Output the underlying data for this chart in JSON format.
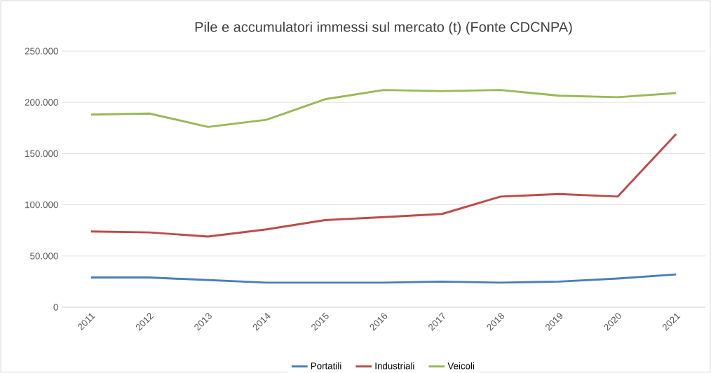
{
  "chart_data": {
    "type": "line",
    "title": "Pile e accumulatori immessi sul mercato (t) (Fonte CDCNPA)",
    "categories": [
      "2011",
      "2012",
      "2013",
      "2014",
      "2015",
      "2016",
      "2017",
      "2018",
      "2019",
      "2020",
      "2021"
    ],
    "series": [
      {
        "name": "Portatili",
        "color": "#4a7ebb",
        "values": [
          29000,
          29000,
          26500,
          24000,
          24000,
          24000,
          25000,
          24000,
          25000,
          28000,
          32000
        ]
      },
      {
        "name": "Industriali",
        "color": "#be4b48",
        "values": [
          74000,
          73000,
          69000,
          76000,
          85000,
          88000,
          91000,
          108000,
          110500,
          108000,
          169000
        ]
      },
      {
        "name": "Veicoli",
        "color": "#98b954",
        "values": [
          188000,
          189000,
          176000,
          183000,
          203000,
          212000,
          211000,
          212000,
          206500,
          205000,
          209000
        ]
      }
    ],
    "ylim": [
      0,
      250000
    ],
    "yticks": [
      {
        "value": 0,
        "label": "0"
      },
      {
        "value": 50000,
        "label": "50.000"
      },
      {
        "value": 100000,
        "label": "100.000"
      },
      {
        "value": 150000,
        "label": "150.000"
      },
      {
        "value": 200000,
        "label": "200.000"
      },
      {
        "value": 250000,
        "label": "250.000"
      }
    ],
    "grid": "y",
    "legend": "bottom",
    "marker": "none",
    "line_style": "solid"
  }
}
